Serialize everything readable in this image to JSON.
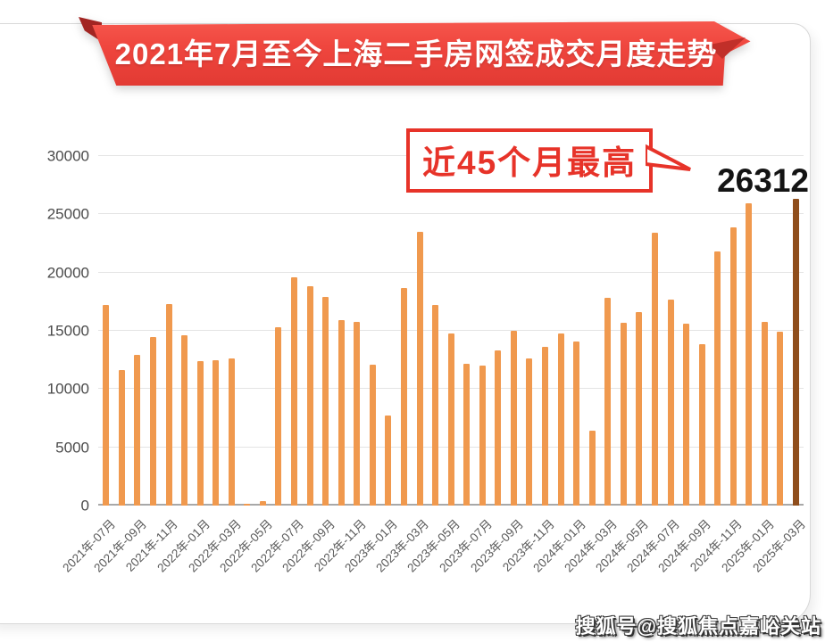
{
  "banner": {
    "title": "2021年7月至今上海二手房网签成交月度走势"
  },
  "callout": {
    "text": "近45个月最高"
  },
  "peak_label": "26312",
  "watermark": "搜狐号@搜狐焦点嘉峪关站",
  "colors": {
    "banner_red": "#ef463e",
    "callout_red": "#e73329",
    "bar_orange": "#f0994e",
    "bar_highlight_brown": "#8f4e1c"
  },
  "chart_data": {
    "type": "bar",
    "title": "2021年7月至今上海二手房网签成交月度走势",
    "xlabel": "",
    "ylabel": "",
    "ylim": [
      0,
      30000
    ],
    "yticks": [
      0,
      5000,
      10000,
      15000,
      20000,
      25000,
      30000
    ],
    "grid": true,
    "tick_every": 2,
    "bar_color": "#f0994e",
    "highlight_index": 44,
    "highlight_color": "#8f4e1c",
    "annotation": {
      "text": "近45个月最高",
      "target_value": 26312,
      "target_month": "2025年-03月"
    },
    "categories": [
      "2021年-07月",
      "2021年-08月",
      "2021年-09月",
      "2021年-10月",
      "2021年-11月",
      "2021年-12月",
      "2022年-01月",
      "2022年-02月",
      "2022年-03月",
      "2022年-04月",
      "2022年-05月",
      "2022年-06月",
      "2022年-07月",
      "2022年-08月",
      "2022年-09月",
      "2022年-10月",
      "2022年-11月",
      "2022年-12月",
      "2023年-01月",
      "2023年-02月",
      "2023年-03月",
      "2023年-04月",
      "2023年-05月",
      "2023年-06月",
      "2023年-07月",
      "2023年-08月",
      "2023年-09月",
      "2023年-10月",
      "2023年-11月",
      "2023年-12月",
      "2024年-01月",
      "2024年-02月",
      "2024年-03月",
      "2024年-04月",
      "2024年-05月",
      "2024年-06月",
      "2024年-07月",
      "2024年-08月",
      "2024年-09月",
      "2024年-10月",
      "2024年-11月",
      "2024年-12月",
      "2025年-01月",
      "2025年-02月",
      "2025年-03月"
    ],
    "values": [
      17200,
      11600,
      12900,
      14500,
      17300,
      14600,
      12400,
      12500,
      12600,
      150,
      400,
      15300,
      19600,
      18800,
      17900,
      15900,
      15800,
      12100,
      7700,
      18700,
      23500,
      17200,
      14800,
      12200,
      12000,
      13300,
      15000,
      12600,
      13600,
      14800,
      14100,
      6400,
      17800,
      15700,
      16600,
      23450,
      17700,
      15600,
      13850,
      21800,
      23900,
      25950,
      15800,
      14900,
      26312
    ]
  }
}
